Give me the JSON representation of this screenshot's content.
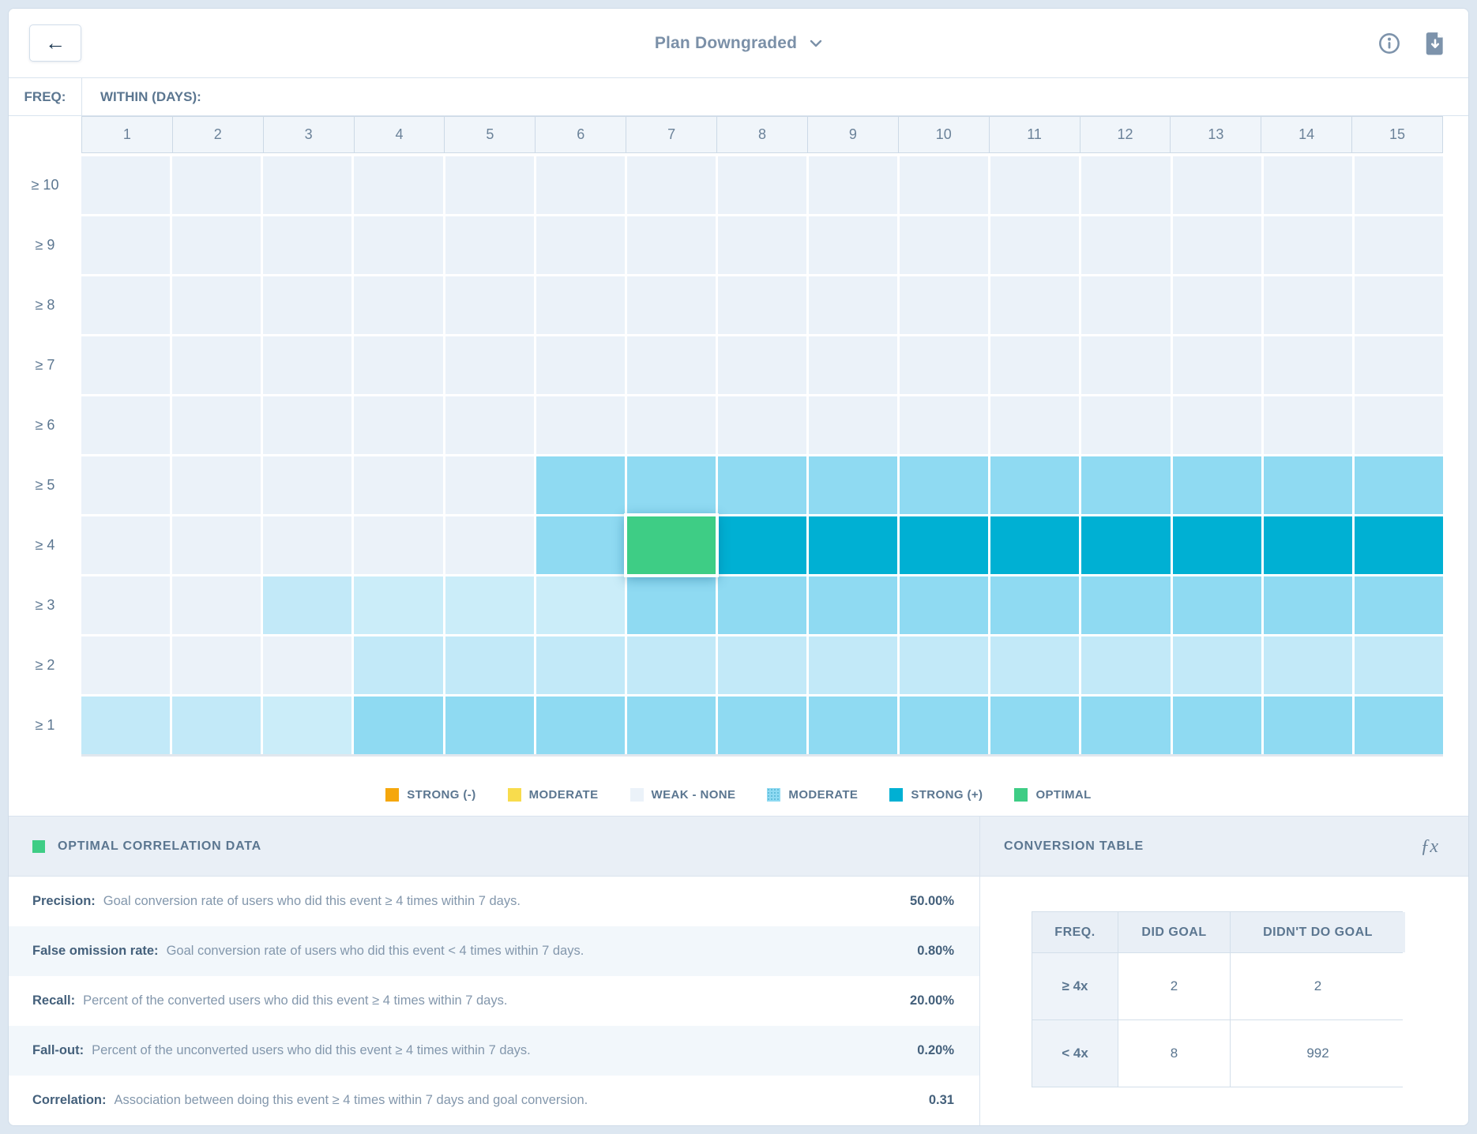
{
  "header": {
    "back_glyph": "←",
    "title": "Plan Downgraded",
    "info_icon": "info-icon",
    "download_icon": "download-icon"
  },
  "heatmap": {
    "freq_label": "FREQ:",
    "within_label": "WITHIN (DAYS):",
    "columns": [
      "1",
      "2",
      "3",
      "4",
      "5",
      "6",
      "7",
      "8",
      "9",
      "10",
      "11",
      "12",
      "13",
      "14",
      "15"
    ],
    "rows": [
      {
        "label": "≥ 10",
        "cells": [
          "weak",
          "weak",
          "weak",
          "weak",
          "weak",
          "weak",
          "weak",
          "weak",
          "weak",
          "weak",
          "weak",
          "weak",
          "weak",
          "weak",
          "weak"
        ]
      },
      {
        "label": "≥ 9",
        "cells": [
          "weak",
          "weak",
          "weak",
          "weak",
          "weak",
          "weak",
          "weak",
          "weak",
          "weak",
          "weak",
          "weak",
          "weak",
          "weak",
          "weak",
          "weak"
        ]
      },
      {
        "label": "≥ 8",
        "cells": [
          "weak",
          "weak",
          "weak",
          "weak",
          "weak",
          "weak",
          "weak",
          "weak",
          "weak",
          "weak",
          "weak",
          "weak",
          "weak",
          "weak",
          "weak"
        ]
      },
      {
        "label": "≥ 7",
        "cells": [
          "weak",
          "weak",
          "weak",
          "weak",
          "weak",
          "weak",
          "weak",
          "weak",
          "weak",
          "weak",
          "weak",
          "weak",
          "weak",
          "weak",
          "weak"
        ]
      },
      {
        "label": "≥ 6",
        "cells": [
          "weak",
          "weak",
          "weak",
          "weak",
          "weak",
          "weak",
          "weak",
          "weak",
          "weak",
          "weak",
          "weak",
          "weak",
          "weak",
          "weak",
          "weak"
        ]
      },
      {
        "label": "≥ 5",
        "cells": [
          "weak",
          "weak",
          "weak",
          "weak",
          "weak",
          "moderate",
          "moderate",
          "moderate",
          "moderate",
          "moderate",
          "moderate",
          "moderate",
          "moderate",
          "moderate",
          "moderate"
        ]
      },
      {
        "label": "≥ 4",
        "cells": [
          "weak",
          "weak",
          "weak",
          "weak",
          "weak",
          "moderate",
          "optimal",
          "strong",
          "strong",
          "strong",
          "strong",
          "strong",
          "strong",
          "strong",
          "strong"
        ]
      },
      {
        "label": "≥ 3",
        "cells": [
          "weak",
          "weak",
          "light",
          "lighter",
          "lighter",
          "lighter",
          "moderate",
          "moderate",
          "moderate",
          "moderate",
          "moderate",
          "moderate",
          "moderate",
          "moderate",
          "moderate"
        ]
      },
      {
        "label": "≥ 2",
        "cells": [
          "weak",
          "weak",
          "weak",
          "light",
          "light",
          "light",
          "light",
          "light",
          "light",
          "light",
          "light",
          "light",
          "light",
          "light",
          "light"
        ]
      },
      {
        "label": "≥ 1",
        "cells": [
          "light",
          "light",
          "lighter",
          "moderate",
          "moderate",
          "moderate",
          "moderate",
          "moderate",
          "moderate",
          "moderate",
          "moderate",
          "moderate",
          "moderate",
          "moderate",
          "moderate"
        ]
      }
    ]
  },
  "colors": {
    "weak": "#ebf2f9",
    "light": "#c2e9f8",
    "lighter": "#cbedf9",
    "moderate": "#8fdaf2",
    "strong": "#00b0d3",
    "optimal": "#3ecd85",
    "strong_neg": "#f5a70d",
    "moderate_neg": "#f8dc4d"
  },
  "legend": [
    {
      "label": "STRONG (-)",
      "color": "strong_neg",
      "dotted": false
    },
    {
      "label": "MODERATE",
      "color": "moderate_neg",
      "dotted": false
    },
    {
      "label": "WEAK - NONE",
      "color": "weak",
      "dotted": false
    },
    {
      "label": "MODERATE",
      "color": "moderate",
      "dotted": true
    },
    {
      "label": "STRONG (+)",
      "color": "strong",
      "dotted": false
    },
    {
      "label": "OPTIMAL",
      "color": "optimal",
      "dotted": false
    }
  ],
  "optimal_panel": {
    "title": "OPTIMAL CORRELATION DATA",
    "rows": [
      {
        "label": "Precision:",
        "desc": "Goal conversion rate of users who did this event ≥ 4 times within 7 days.",
        "value": "50.00%"
      },
      {
        "label": "False omission rate:",
        "desc": "Goal conversion rate of users who did this event < 4 times within 7 days.",
        "value": "0.80%"
      },
      {
        "label": "Recall:",
        "desc": "Percent of the converted users who did this event ≥ 4 times within 7 days.",
        "value": "20.00%"
      },
      {
        "label": "Fall-out:",
        "desc": "Percent of the unconverted users who did this event ≥ 4 times within 7 days.",
        "value": "0.20%"
      },
      {
        "label": "Correlation:",
        "desc": "Association between doing this event ≥ 4 times within 7 days and goal conversion.",
        "value": "0.31"
      }
    ]
  },
  "conversion_panel": {
    "title": "CONVERSION TABLE",
    "fx_glyph": "ƒx",
    "table": {
      "headers": [
        "FREQ.",
        "DID GOAL",
        "DIDN'T DO GOAL"
      ],
      "rows": [
        [
          "≥ 4x",
          "2",
          "2"
        ],
        [
          "< 4x",
          "8",
          "992"
        ]
      ]
    }
  },
  "chart_data": {
    "type": "heatmap",
    "title": "Plan Downgraded",
    "xlabel": "WITHIN (DAYS):",
    "ylabel": "FREQ:",
    "x": [
      "1",
      "2",
      "3",
      "4",
      "5",
      "6",
      "7",
      "8",
      "9",
      "10",
      "11",
      "12",
      "13",
      "14",
      "15"
    ],
    "y": [
      "≥ 10",
      "≥ 9",
      "≥ 8",
      "≥ 7",
      "≥ 6",
      "≥ 5",
      "≥ 4",
      "≥ 3",
      "≥ 2",
      "≥ 1"
    ],
    "values": [
      [
        "weak",
        "weak",
        "weak",
        "weak",
        "weak",
        "weak",
        "weak",
        "weak",
        "weak",
        "weak",
        "weak",
        "weak",
        "weak",
        "weak",
        "weak"
      ],
      [
        "weak",
        "weak",
        "weak",
        "weak",
        "weak",
        "weak",
        "weak",
        "weak",
        "weak",
        "weak",
        "weak",
        "weak",
        "weak",
        "weak",
        "weak"
      ],
      [
        "weak",
        "weak",
        "weak",
        "weak",
        "weak",
        "weak",
        "weak",
        "weak",
        "weak",
        "weak",
        "weak",
        "weak",
        "weak",
        "weak",
        "weak"
      ],
      [
        "weak",
        "weak",
        "weak",
        "weak",
        "weak",
        "weak",
        "weak",
        "weak",
        "weak",
        "weak",
        "weak",
        "weak",
        "weak",
        "weak",
        "weak"
      ],
      [
        "weak",
        "weak",
        "weak",
        "weak",
        "weak",
        "weak",
        "weak",
        "weak",
        "weak",
        "weak",
        "weak",
        "weak",
        "weak",
        "weak",
        "weak"
      ],
      [
        "weak",
        "weak",
        "weak",
        "weak",
        "weak",
        "moderate",
        "moderate",
        "moderate",
        "moderate",
        "moderate",
        "moderate",
        "moderate",
        "moderate",
        "moderate",
        "moderate"
      ],
      [
        "weak",
        "weak",
        "weak",
        "weak",
        "weak",
        "moderate",
        "optimal",
        "strong",
        "strong",
        "strong",
        "strong",
        "strong",
        "strong",
        "strong",
        "strong"
      ],
      [
        "weak",
        "weak",
        "light",
        "lighter",
        "lighter",
        "lighter",
        "moderate",
        "moderate",
        "moderate",
        "moderate",
        "moderate",
        "moderate",
        "moderate",
        "moderate",
        "moderate"
      ],
      [
        "weak",
        "weak",
        "weak",
        "light",
        "light",
        "light",
        "light",
        "light",
        "light",
        "light",
        "light",
        "light",
        "light",
        "light",
        "light"
      ],
      [
        "light",
        "light",
        "lighter",
        "moderate",
        "moderate",
        "moderate",
        "moderate",
        "moderate",
        "moderate",
        "moderate",
        "moderate",
        "moderate",
        "moderate",
        "moderate",
        "moderate"
      ]
    ],
    "optimal_cell": {
      "freq": "≥ 4",
      "within_days": "7"
    },
    "legend_entries": [
      "STRONG (-)",
      "MODERATE",
      "WEAK - NONE",
      "MODERATE",
      "STRONG (+)",
      "OPTIMAL"
    ],
    "legend_position": "bottom"
  }
}
